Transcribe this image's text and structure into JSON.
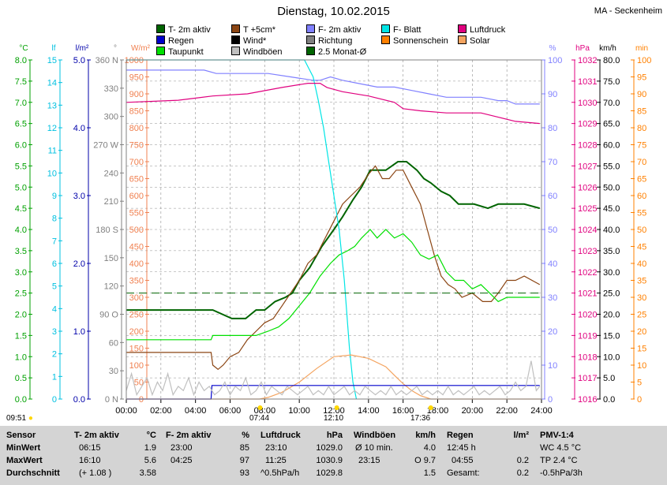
{
  "title": "Dienstag, 10.02.2015",
  "station": "MA - Seckenheim",
  "legend": [
    {
      "label": "T- 2m aktiv",
      "color": "#006400"
    },
    {
      "label": "T +5cm*",
      "color": "#8b4513"
    },
    {
      "label": "F- 2m aktiv",
      "color": "#8080ff"
    },
    {
      "label": "F- Blatt",
      "color": "#00e5e5"
    },
    {
      "label": "Luftdruck",
      "color": "#e0007f"
    },
    {
      "label": "Regen",
      "color": "#0000cc"
    },
    {
      "label": "Wind*",
      "color": "#000000"
    },
    {
      "label": "Richtung",
      "color": "#808080"
    },
    {
      "label": "Sonnenschein",
      "color": "#ff8000"
    },
    {
      "label": "Solar",
      "color": "#f4a460"
    },
    {
      "label": "Taupunkt",
      "color": "#00e000"
    },
    {
      "label": "Windböen",
      "color": "#c0c0c0"
    },
    {
      "label": "2.5 Monat-Ø",
      "color": "#006400"
    }
  ],
  "axis_headers": {
    "temp": "°C",
    "lf": "lf",
    "rain": "l/m²",
    "dir": "°",
    "solar": "W/m²",
    "hum": "%",
    "press": "hPa",
    "wind": "km/h",
    "min": "min"
  },
  "axes": {
    "temp": [
      "0.0",
      "0.5",
      "1.0",
      "1.5",
      "2.0",
      "2.5",
      "3.0",
      "3.5",
      "4.0",
      "4.5",
      "5.0",
      "5.5",
      "6.0",
      "6.5",
      "7.0",
      "7.5",
      "8.0"
    ],
    "lf": [
      "0",
      "1",
      "2",
      "3",
      "4",
      "5",
      "6",
      "7",
      "8",
      "9",
      "10",
      "11",
      "12",
      "13",
      "14",
      "15"
    ],
    "rain": [
      "0.0",
      "1.0",
      "2.0",
      "3.0",
      "4.0",
      "5.0"
    ],
    "dir": [
      "0 N",
      "30",
      "60",
      "90 O",
      "120",
      "150",
      "180 S",
      "210",
      "240",
      "270 W",
      "300",
      "330",
      "360 N"
    ],
    "solar": [
      "0",
      "50",
      "100",
      "150",
      "200",
      "250",
      "300",
      "350",
      "400",
      "450",
      "500",
      "550",
      "600",
      "650",
      "700",
      "750",
      "800",
      "850",
      "900",
      "950",
      "1000"
    ],
    "hum": [
      "0",
      "10",
      "20",
      "30",
      "40",
      "50",
      "60",
      "70",
      "80",
      "90",
      "100"
    ],
    "press": [
      "1016",
      "1017",
      "1018",
      "1019",
      "1020",
      "1021",
      "1022",
      "1023",
      "1024",
      "1025",
      "1026",
      "1027",
      "1028",
      "1029",
      "1030",
      "1031",
      "1032"
    ],
    "wind": [
      "0.0",
      "5.0",
      "10.0",
      "15.0",
      "20.0",
      "25.0",
      "30.0",
      "35.0",
      "40.0",
      "45.0",
      "50.0",
      "55.0",
      "60.0",
      "65.0",
      "70.0",
      "75.0",
      "80.0"
    ],
    "min": [
      "0",
      "5",
      "10",
      "15",
      "20",
      "25",
      "30",
      "35",
      "40",
      "45",
      "50",
      "55",
      "60",
      "65",
      "70",
      "75",
      "80",
      "85",
      "90",
      "95",
      "100"
    ]
  },
  "x_ticks": [
    "00:00",
    "02:00",
    "04:00",
    "06:00",
    "08:00",
    "10:00",
    "12:00",
    "14:00",
    "16:00",
    "18:00",
    "20:00",
    "22:00",
    "24:00"
  ],
  "sun": {
    "sunrise": "07:44",
    "noon": "12:10",
    "sunset": "17:36",
    "start": "09:51"
  },
  "chart_data": {
    "type": "line",
    "x_unit": "hours",
    "xlim": [
      0,
      24
    ],
    "series": [
      {
        "name": "T- 2m aktiv",
        "axis": "temp",
        "color": "#006400",
        "x": [
          0,
          4.9,
          5.0,
          6.1,
          6.9,
          7.5,
          8,
          8.6,
          9.2,
          9.6,
          10,
          10.6,
          11.3,
          12,
          12.5,
          13.1,
          13.6,
          14.1,
          15,
          15.7,
          16.2,
          16.8,
          17.2,
          17.6,
          18.2,
          18.7,
          19.2,
          20.1,
          20.9,
          21.5,
          22,
          22.5,
          23,
          23.9
        ],
        "y": [
          2.1,
          2.1,
          2.1,
          1.9,
          1.9,
          2.1,
          2.1,
          2.3,
          2.4,
          2.5,
          2.8,
          3.1,
          3.6,
          4.0,
          4.3,
          4.7,
          5.0,
          5.4,
          5.4,
          5.6,
          5.6,
          5.4,
          5.2,
          5.1,
          4.9,
          4.8,
          4.6,
          4.6,
          4.5,
          4.6,
          4.6,
          4.6,
          4.6,
          4.5
        ]
      },
      {
        "name": "T +5cm*",
        "axis": "temp",
        "color": "#8b4513",
        "x": [
          0,
          4.9,
          5.0,
          5.3,
          5.6,
          6.0,
          6.5,
          7,
          7.5,
          8,
          8.5,
          9,
          9.5,
          10,
          10.5,
          11,
          11.5,
          12,
          12.5,
          13,
          13.5,
          14,
          14.4,
          14.8,
          15.2,
          15.6,
          16,
          16.5,
          17,
          17.4,
          17.8,
          18.2,
          18.6,
          19,
          19.4,
          20,
          20.6,
          21.1,
          21.5,
          22,
          22.5,
          23,
          23.9
        ],
        "y": [
          1.1,
          1.1,
          0.8,
          0.7,
          0.8,
          1.0,
          1.1,
          1.4,
          1.6,
          1.8,
          1.9,
          2.2,
          2.5,
          2.8,
          3.2,
          3.4,
          3.8,
          4.2,
          4.6,
          4.8,
          5.0,
          5.3,
          5.5,
          5.2,
          5.2,
          5.4,
          5.4,
          5.0,
          4.6,
          4.0,
          3.4,
          2.9,
          2.7,
          2.6,
          2.4,
          2.5,
          2.3,
          2.3,
          2.5,
          2.8,
          2.8,
          2.9,
          2.7
        ]
      },
      {
        "name": "Taupunkt",
        "axis": "temp",
        "color": "#00e000",
        "x": [
          0,
          4.9,
          5.0,
          6.0,
          6.8,
          7.5,
          8.2,
          8.8,
          9.4,
          10,
          10.6,
          11.2,
          11.8,
          12.3,
          12.8,
          13.2,
          13.6,
          14.1,
          14.5,
          15,
          15.5,
          16,
          16.5,
          17,
          17.5,
          18,
          18.5,
          19,
          19.5,
          20,
          20.5,
          21,
          21.5,
          22,
          22.5,
          23,
          23.9
        ],
        "y": [
          1.4,
          1.4,
          1.5,
          1.5,
          1.5,
          1.5,
          1.6,
          1.7,
          1.9,
          2.2,
          2.5,
          2.9,
          3.2,
          3.4,
          3.5,
          3.6,
          3.8,
          4.0,
          3.8,
          4.0,
          3.8,
          3.9,
          3.7,
          3.4,
          3.3,
          3.4,
          3.0,
          2.8,
          2.8,
          2.6,
          2.7,
          2.5,
          2.3,
          2.4,
          2.4,
          2.4,
          2.4
        ]
      },
      {
        "name": "F- 2m aktiv",
        "axis": "hum",
        "color": "#8080ff",
        "x": [
          0,
          4.5,
          5.2,
          6.5,
          8.2,
          9.5,
          10.8,
          11.2,
          11.8,
          12.5,
          13.5,
          14.5,
          15.5,
          16.5,
          17.5,
          18.5,
          19.5,
          20.5,
          21.5,
          22,
          22.5,
          23,
          23.9
        ],
        "y": [
          97,
          97,
          96,
          96,
          96,
          95,
          94,
          94,
          95,
          94,
          93,
          92,
          92,
          91,
          90,
          89,
          89,
          89,
          88,
          88,
          87,
          87,
          87
        ]
      },
      {
        "name": "F- Blatt",
        "axis": "hum",
        "color": "#00e5e5",
        "x": [
          0,
          10.3,
          10.5,
          10.8,
          11.1,
          11.4,
          11.7,
          12.0,
          12.3,
          12.6,
          12.9,
          13.1,
          13.3
        ],
        "y": [
          100,
          100,
          98,
          95,
          88,
          80,
          70,
          60,
          50,
          35,
          15,
          5,
          0
        ]
      },
      {
        "name": "Luftdruck",
        "axis": "press",
        "color": "#e0007f",
        "x": [
          0,
          3,
          5,
          7,
          9,
          10.5,
          11.2,
          11.6,
          12.5,
          14,
          15.5,
          16,
          17,
          18.5,
          19.5,
          20.5,
          21.5,
          22.5,
          23.9
        ],
        "y": [
          1030.0,
          1030.1,
          1030.3,
          1030.4,
          1030.7,
          1030.9,
          1030.9,
          1030.7,
          1030.5,
          1030.3,
          1030.0,
          1029.7,
          1029.6,
          1029.5,
          1029.5,
          1029.5,
          1029.3,
          1029.1,
          1029.0
        ]
      },
      {
        "name": "Solar",
        "axis": "solar",
        "color": "#f4a460",
        "x": [
          0,
          7.7,
          8.2,
          9,
          10,
          11,
          12,
          13,
          14,
          15,
          15.5,
          16,
          16.5,
          17,
          17.6,
          24
        ],
        "y": [
          0,
          0,
          5,
          20,
          50,
          90,
          125,
          130,
          120,
          95,
          70,
          45,
          25,
          10,
          0,
          0
        ]
      },
      {
        "name": "Regen",
        "axis": "rain",
        "color": "#0000cc",
        "x": [
          0,
          4.9,
          4.95,
          23.9
        ],
        "y": [
          0,
          0,
          0.2,
          0.2
        ]
      },
      {
        "name": "Windböen",
        "axis": "wind",
        "color": "#c0c0c0",
        "x": [
          0,
          0.3,
          0.6,
          0.9,
          1.2,
          1.5,
          1.8,
          2.1,
          2.4,
          2.7,
          3,
          3.3,
          3.6,
          3.9,
          4.2,
          4.5,
          4.8,
          5.1,
          5.4,
          5.7,
          6,
          6.3,
          6.6,
          6.9,
          7.2,
          7.5,
          7.8,
          8.1,
          8.4,
          8.7,
          9,
          9.3,
          9.6,
          9.9,
          10.2,
          10.5,
          10.8,
          11.1,
          11.4,
          11.7,
          12,
          12.3,
          12.6,
          12.9,
          13.2,
          13.5,
          13.8,
          14.1,
          14.4,
          14.7,
          15,
          15.3,
          15.6,
          15.9,
          16.2,
          16.5,
          16.8,
          17.1,
          17.4,
          17.7,
          18,
          18.3,
          18.6,
          18.9,
          19.2,
          19.5,
          19.8,
          20.1,
          20.4,
          20.7,
          21,
          21.3,
          21.6,
          21.9,
          22.2,
          22.5,
          22.8,
          23.1,
          23.4,
          23.7,
          23.9
        ],
        "y": [
          2,
          6,
          1,
          3,
          5,
          1,
          4,
          2,
          6,
          1,
          3,
          2,
          5,
          1,
          4,
          2,
          3,
          1,
          2,
          4,
          1,
          3,
          2,
          5,
          1,
          2,
          4,
          1,
          3,
          2,
          1,
          3,
          2,
          1,
          2,
          3,
          1,
          2,
          1,
          3,
          1,
          2,
          3,
          1,
          2,
          1,
          3,
          2,
          1,
          2,
          1,
          3,
          1,
          2,
          1,
          2,
          3,
          1,
          2,
          1,
          2,
          1,
          3,
          1,
          2,
          1,
          2,
          3,
          1,
          2,
          1,
          2,
          3,
          1,
          2,
          4,
          2,
          3,
          9,
          2,
          3
        ]
      },
      {
        "name": "2.5 Monat-Ø",
        "axis": "temp",
        "color": "#006400",
        "dashed": true,
        "x": [
          0,
          24
        ],
        "y": [
          2.5,
          2.5
        ]
      }
    ]
  },
  "stats": {
    "headers": {
      "sensor": "Sensor",
      "t": "T- 2m aktiv",
      "t_unit": "°C",
      "f": "F- 2m aktiv",
      "f_unit": "%",
      "p": "Luftdruck",
      "p_unit": "hPa",
      "w": "Windböen",
      "w_unit": "km/h",
      "r": "Regen",
      "r_unit": "l/m²",
      "pmv": "PMV-1:4"
    },
    "rows": [
      {
        "label": "MinWert",
        "t_time": "06:15",
        "t_val": "1.9",
        "f_time": "23:00",
        "f_val": "85",
        "p_time": "23:10",
        "p_val": "1029.0",
        "w_label": "Ø 10 min.",
        "w_val": "4.0",
        "r_time": "12:45 h",
        "r_val": "",
        "pmv": "WC 4.5 °C"
      },
      {
        "label": "MaxWert",
        "t_time": "16:10",
        "t_val": "5.6",
        "f_time": "04:25",
        "f_val": "97",
        "p_time": "11:25",
        "p_val": "1030.9",
        "w_label": "23:15",
        "w_val": "O 9.7",
        "r_time": "04:55",
        "r_val": "0.2",
        "pmv": "TP 2.4 °C"
      },
      {
        "label": "Durchschnitt",
        "t_time": "(+ 1.08 )",
        "t_val": "3.58",
        "f_time": "",
        "f_val": "93",
        "p_time": "^0.5hPa/h",
        "p_val": "1029.8",
        "w_label": "",
        "w_val": "1.5",
        "r_time": "Gesamt:",
        "r_val": "0.2",
        "pmv": "-0.5hPa/3h"
      }
    ]
  }
}
